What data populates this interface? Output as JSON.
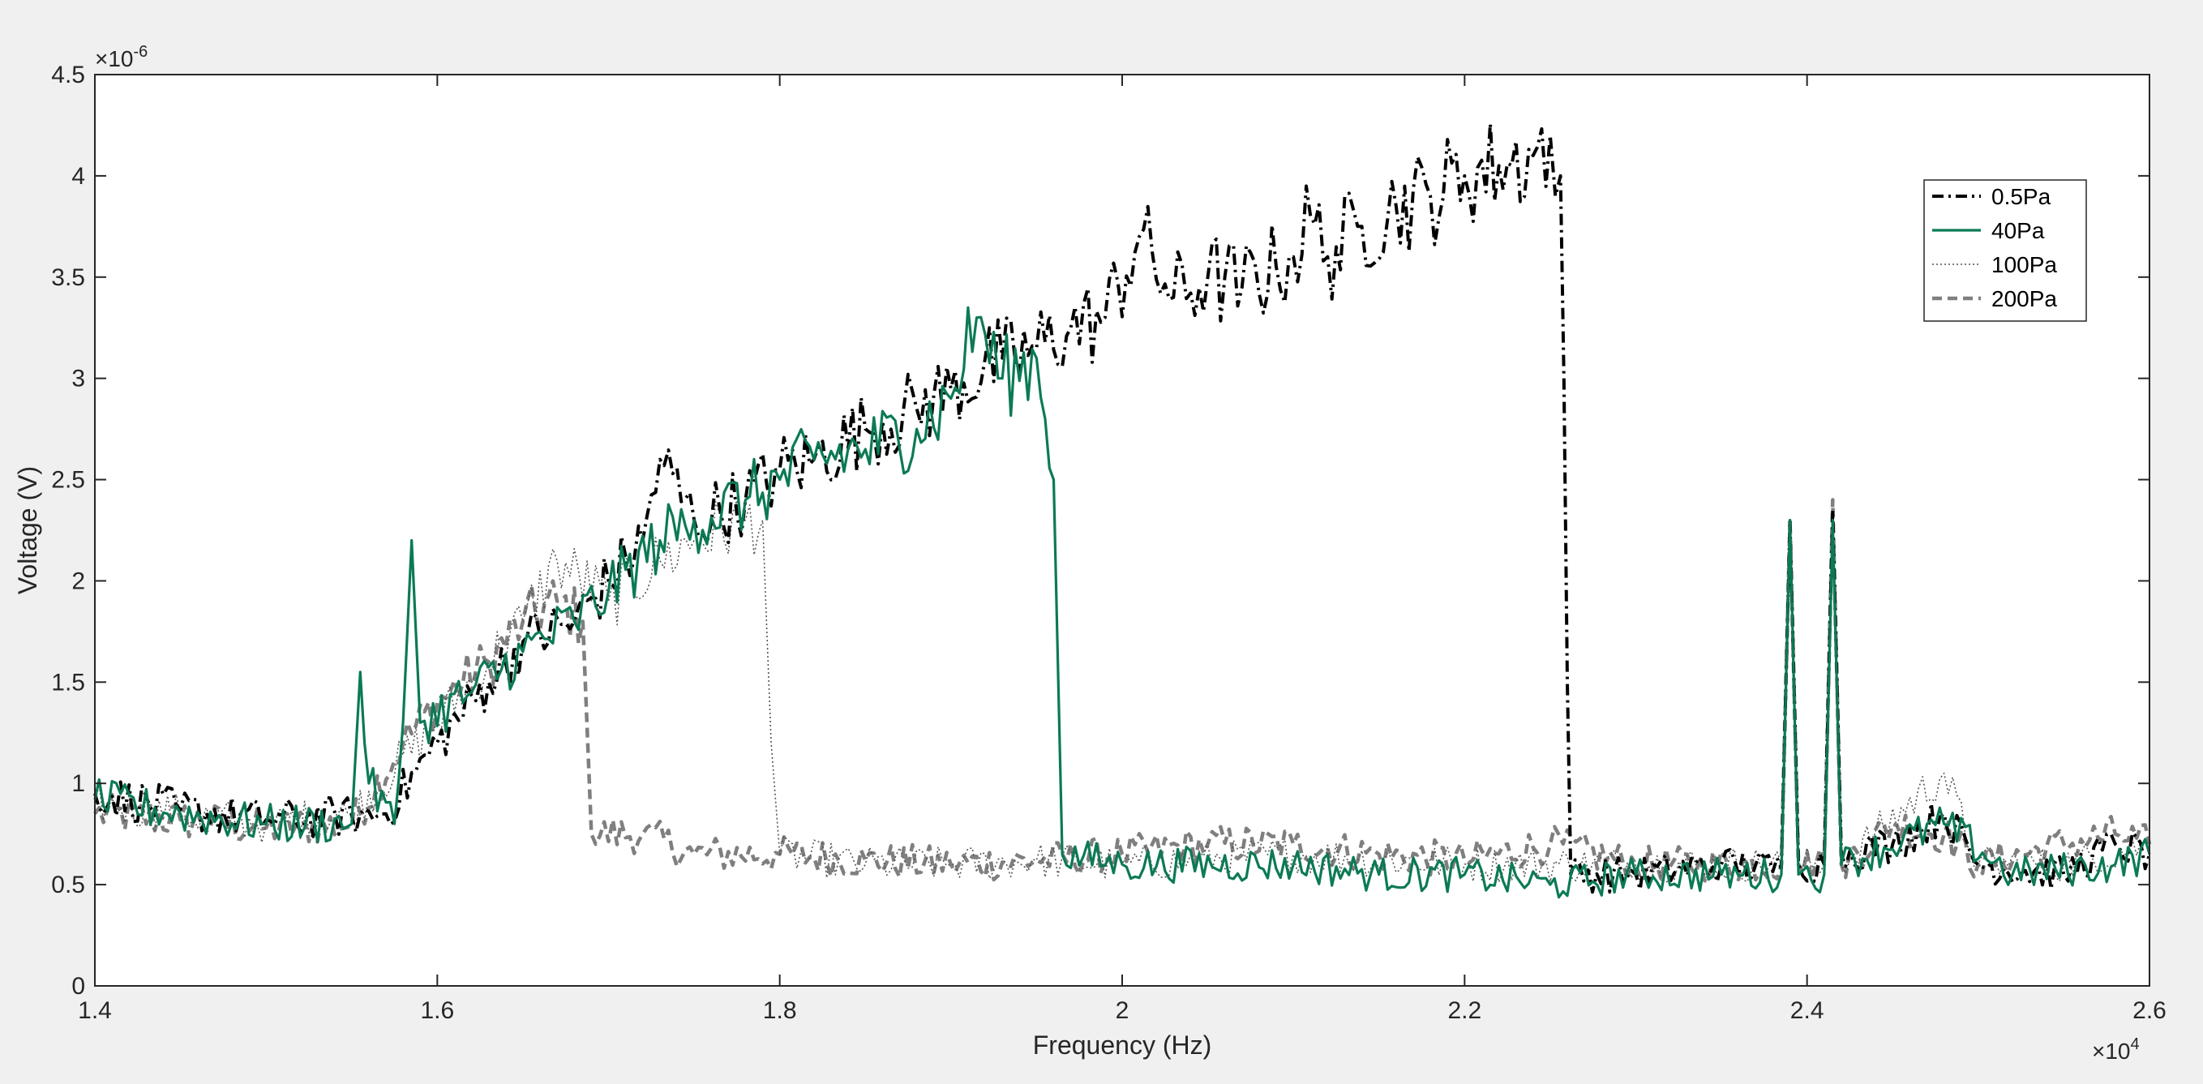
{
  "chart_data": {
    "type": "line",
    "title": "",
    "xlabel": "Frequency (Hz)",
    "ylabel": "Voltage (V)",
    "x_multiplier": "×10",
    "x_exponent": "4",
    "y_multiplier": "×10",
    "y_exponent": "-6",
    "xlim": [
      1.4,
      2.6
    ],
    "ylim": [
      0,
      4.5
    ],
    "x_ticks": [
      "1.4",
      "1.6",
      "1.8",
      "2",
      "2.2",
      "2.4",
      "2.6"
    ],
    "y_ticks": [
      "0",
      "0.5",
      "1",
      "1.5",
      "2",
      "2.5",
      "3",
      "3.5",
      "4",
      "4.5"
    ],
    "legend_position": "top-right",
    "grid": false,
    "series": [
      {
        "name": "0.5Pa",
        "color": "#000000",
        "style": "dashdot",
        "points": [
          [
            1.4,
            0.95
          ],
          [
            1.45,
            0.87
          ],
          [
            1.5,
            0.82
          ],
          [
            1.55,
            0.84
          ],
          [
            1.57,
            0.85
          ],
          [
            1.6,
            1.2
          ],
          [
            1.63,
            1.5
          ],
          [
            1.65,
            1.7
          ],
          [
            1.68,
            1.8
          ],
          [
            1.7,
            2.0
          ],
          [
            1.72,
            2.2
          ],
          [
            1.73,
            2.6
          ],
          [
            1.75,
            2.3
          ],
          [
            1.78,
            2.4
          ],
          [
            1.8,
            2.55
          ],
          [
            1.82,
            2.6
          ],
          [
            1.85,
            2.75
          ],
          [
            1.88,
            2.85
          ],
          [
            1.9,
            2.95
          ],
          [
            1.93,
            3.1
          ],
          [
            1.95,
            3.15
          ],
          [
            1.97,
            3.25
          ],
          [
            1.99,
            3.3
          ],
          [
            2.01,
            3.7
          ],
          [
            2.03,
            3.4
          ],
          [
            2.05,
            3.5
          ],
          [
            2.07,
            3.45
          ],
          [
            2.09,
            3.55
          ],
          [
            2.1,
            3.6
          ],
          [
            2.11,
            3.8
          ],
          [
            2.12,
            3.6
          ],
          [
            2.14,
            3.75
          ],
          [
            2.16,
            3.85
          ],
          [
            2.18,
            3.9
          ],
          [
            2.2,
            4.0
          ],
          [
            2.22,
            4.05
          ],
          [
            2.24,
            4.1
          ],
          [
            2.25,
            4.2
          ],
          [
            2.253,
            3.9
          ],
          [
            2.256,
            4.0
          ],
          [
            2.258,
            3.0
          ],
          [
            2.26,
            1.5
          ],
          [
            2.262,
            0.55
          ],
          [
            2.3,
            0.55
          ],
          [
            2.35,
            0.6
          ],
          [
            2.385,
            0.58
          ],
          [
            2.39,
            2.3
          ],
          [
            2.395,
            0.6
          ],
          [
            2.41,
            0.6
          ],
          [
            2.415,
            2.35
          ],
          [
            2.42,
            0.65
          ],
          [
            2.45,
            0.7
          ],
          [
            2.48,
            0.85
          ],
          [
            2.5,
            0.6
          ],
          [
            2.55,
            0.55
          ],
          [
            2.58,
            0.7
          ],
          [
            2.6,
            0.65
          ]
        ]
      },
      {
        "name": "40Pa",
        "color": "#0b7a55",
        "style": "solid",
        "points": [
          [
            1.4,
            0.92
          ],
          [
            1.45,
            0.85
          ],
          [
            1.5,
            0.8
          ],
          [
            1.55,
            0.8
          ],
          [
            1.555,
            1.55
          ],
          [
            1.56,
            1.0
          ],
          [
            1.575,
            0.8
          ],
          [
            1.58,
            1.3
          ],
          [
            1.585,
            2.2
          ],
          [
            1.59,
            1.3
          ],
          [
            1.62,
            1.45
          ],
          [
            1.65,
            1.65
          ],
          [
            1.68,
            1.8
          ],
          [
            1.7,
            1.95
          ],
          [
            1.73,
            2.2
          ],
          [
            1.75,
            2.3
          ],
          [
            1.78,
            2.4
          ],
          [
            1.8,
            2.5
          ],
          [
            1.82,
            2.6
          ],
          [
            1.85,
            2.65
          ],
          [
            1.88,
            2.75
          ],
          [
            1.9,
            2.9
          ],
          [
            1.915,
            3.3
          ],
          [
            1.93,
            3.0
          ],
          [
            1.95,
            3.1
          ],
          [
            1.955,
            2.8
          ],
          [
            1.96,
            2.5
          ],
          [
            1.965,
            0.65
          ],
          [
            2.0,
            0.6
          ],
          [
            2.1,
            0.6
          ],
          [
            2.15,
            0.55
          ],
          [
            2.2,
            0.55
          ],
          [
            2.25,
            0.5
          ],
          [
            2.3,
            0.55
          ],
          [
            2.35,
            0.55
          ],
          [
            2.385,
            0.55
          ],
          [
            2.39,
            2.3
          ],
          [
            2.395,
            0.55
          ],
          [
            2.41,
            0.55
          ],
          [
            2.415,
            2.3
          ],
          [
            2.42,
            0.6
          ],
          [
            2.48,
            0.8
          ],
          [
            2.52,
            0.55
          ],
          [
            2.58,
            0.6
          ],
          [
            2.6,
            0.65
          ]
        ]
      },
      {
        "name": "100Pa",
        "color": "#555555",
        "style": "dotted",
        "points": [
          [
            1.4,
            0.9
          ],
          [
            1.45,
            0.85
          ],
          [
            1.5,
            0.8
          ],
          [
            1.55,
            0.85
          ],
          [
            1.6,
            1.3
          ],
          [
            1.63,
            1.6
          ],
          [
            1.65,
            1.8
          ],
          [
            1.67,
            2.1
          ],
          [
            1.7,
            1.9
          ],
          [
            1.73,
            2.1
          ],
          [
            1.75,
            2.2
          ],
          [
            1.78,
            2.3
          ],
          [
            1.79,
            2.3
          ],
          [
            1.795,
            1.2
          ],
          [
            1.8,
            0.65
          ],
          [
            1.85,
            0.6
          ],
          [
            1.9,
            0.6
          ],
          [
            1.95,
            0.62
          ],
          [
            2.0,
            0.6
          ],
          [
            2.1,
            0.65
          ],
          [
            2.2,
            0.6
          ],
          [
            2.3,
            0.6
          ],
          [
            2.385,
            0.6
          ],
          [
            2.39,
            2.25
          ],
          [
            2.395,
            0.6
          ],
          [
            2.41,
            0.6
          ],
          [
            2.415,
            2.3
          ],
          [
            2.42,
            0.6
          ],
          [
            2.48,
            1.05
          ],
          [
            2.5,
            0.6
          ],
          [
            2.55,
            0.6
          ],
          [
            2.6,
            0.7
          ]
        ]
      },
      {
        "name": "200Pa",
        "color": "#7f7f7f",
        "style": "dashed",
        "points": [
          [
            1.4,
            0.85
          ],
          [
            1.45,
            0.82
          ],
          [
            1.5,
            0.78
          ],
          [
            1.55,
            0.8
          ],
          [
            1.58,
            1.2
          ],
          [
            1.6,
            1.4
          ],
          [
            1.63,
            1.6
          ],
          [
            1.65,
            1.8
          ],
          [
            1.67,
            1.9
          ],
          [
            1.685,
            1.8
          ],
          [
            1.69,
            0.75
          ],
          [
            1.72,
            0.75
          ],
          [
            1.75,
            0.65
          ],
          [
            1.8,
            0.65
          ],
          [
            1.85,
            0.62
          ],
          [
            1.9,
            0.6
          ],
          [
            1.95,
            0.62
          ],
          [
            2.0,
            0.65
          ],
          [
            2.05,
            0.7
          ],
          [
            2.1,
            0.7
          ],
          [
            2.15,
            0.65
          ],
          [
            2.2,
            0.62
          ],
          [
            2.25,
            0.7
          ],
          [
            2.3,
            0.6
          ],
          [
            2.385,
            0.6
          ],
          [
            2.39,
            2.3
          ],
          [
            2.395,
            0.6
          ],
          [
            2.41,
            0.6
          ],
          [
            2.415,
            2.4
          ],
          [
            2.42,
            0.6
          ],
          [
            2.45,
            0.8
          ],
          [
            2.48,
            0.75
          ],
          [
            2.5,
            0.6
          ],
          [
            2.55,
            0.7
          ],
          [
            2.58,
            0.75
          ],
          [
            2.6,
            0.7
          ]
        ]
      }
    ]
  }
}
